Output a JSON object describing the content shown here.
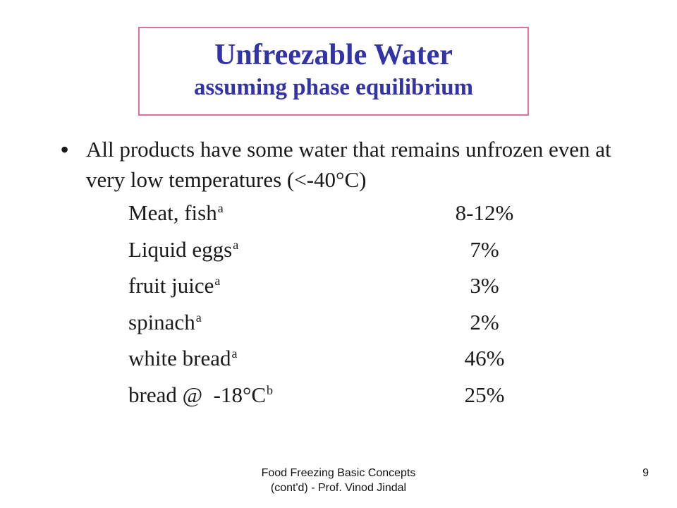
{
  "slide": {
    "title": "Unfreezable Water",
    "subtitle": "assuming phase equilibrium",
    "bullet": "All products have some water that remains unfrozen even at very low temperatures (<-40°C)",
    "table": [
      {
        "label": "Meat, fish",
        "sup": "a",
        "value": "8-12%"
      },
      {
        "label": "Liquid eggs",
        "sup": "a",
        "value": "7%"
      },
      {
        "label": "fruit juice",
        "sup": "a",
        "value": "3%"
      },
      {
        "label": "spinach",
        "sup": "a",
        "value": "2%"
      },
      {
        "label": "white bread",
        "sup": "a",
        "value": "46%"
      },
      {
        "label": "bread @  -18°C",
        "sup": "b",
        "value": "25%"
      }
    ]
  },
  "footer": {
    "line1": "Food Freezing Basic Concepts",
    "line2": "(cont'd) - Prof. Vinod Jindal",
    "page_number": "9"
  },
  "colors": {
    "title_text": "#3333a8",
    "title_border": "#e0709a"
  }
}
